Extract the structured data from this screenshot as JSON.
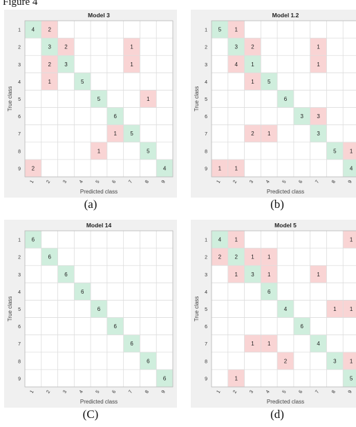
{
  "figure": {
    "title": "Figure 4"
  },
  "chart_data": [
    {
      "type": "heatmap",
      "title": "Model 3",
      "caption": "(a)",
      "xlabel": "Predicted class",
      "ylabel": "True class",
      "row_labels": [
        "1",
        "2",
        "3",
        "4",
        "5",
        "6",
        "7",
        "8",
        "9"
      ],
      "col_labels": [
        "1",
        "2",
        "3",
        "4",
        "5",
        "6",
        "7",
        "8",
        "9"
      ],
      "colors": {
        "diagonal": "#cfeedd",
        "off_diagonal": "#f9d4d4",
        "frame": "#f0f0f0",
        "grid": "#dddddd"
      },
      "cells": [
        {
          "row": 1,
          "col": 1,
          "value": 4
        },
        {
          "row": 1,
          "col": 2,
          "value": 2
        },
        {
          "row": 2,
          "col": 2,
          "value": 3
        },
        {
          "row": 2,
          "col": 3,
          "value": 2
        },
        {
          "row": 2,
          "col": 7,
          "value": 1
        },
        {
          "row": 3,
          "col": 2,
          "value": 2
        },
        {
          "row": 3,
          "col": 3,
          "value": 3
        },
        {
          "row": 3,
          "col": 7,
          "value": 1
        },
        {
          "row": 4,
          "col": 2,
          "value": 1
        },
        {
          "row": 4,
          "col": 4,
          "value": 5
        },
        {
          "row": 5,
          "col": 5,
          "value": 5
        },
        {
          "row": 5,
          "col": 8,
          "value": 1
        },
        {
          "row": 6,
          "col": 6,
          "value": 6
        },
        {
          "row": 7,
          "col": 6,
          "value": 1
        },
        {
          "row": 7,
          "col": 7,
          "value": 5
        },
        {
          "row": 8,
          "col": 5,
          "value": 1
        },
        {
          "row": 8,
          "col": 8,
          "value": 5
        },
        {
          "row": 9,
          "col": 1,
          "value": 2
        },
        {
          "row": 9,
          "col": 9,
          "value": 4
        }
      ]
    },
    {
      "type": "heatmap",
      "title": "Model 1.2",
      "caption": "(b)",
      "xlabel": "Predicted class",
      "ylabel": "True class",
      "row_labels": [
        "1",
        "2",
        "3",
        "4",
        "5",
        "6",
        "7",
        "8",
        "9"
      ],
      "col_labels": [
        "1",
        "2",
        "3",
        "4",
        "5",
        "6",
        "7",
        "8",
        "9"
      ],
      "colors": {
        "diagonal": "#cfeedd",
        "off_diagonal": "#f9d4d4",
        "frame": "#f0f0f0",
        "grid": "#dddddd"
      },
      "cells": [
        {
          "row": 1,
          "col": 1,
          "value": 5
        },
        {
          "row": 1,
          "col": 2,
          "value": 1
        },
        {
          "row": 2,
          "col": 2,
          "value": 3
        },
        {
          "row": 2,
          "col": 3,
          "value": 2
        },
        {
          "row": 2,
          "col": 7,
          "value": 1
        },
        {
          "row": 3,
          "col": 2,
          "value": 4
        },
        {
          "row": 3,
          "col": 3,
          "value": 1
        },
        {
          "row": 3,
          "col": 7,
          "value": 1
        },
        {
          "row": 4,
          "col": 3,
          "value": 1
        },
        {
          "row": 4,
          "col": 4,
          "value": 5
        },
        {
          "row": 5,
          "col": 5,
          "value": 6
        },
        {
          "row": 6,
          "col": 6,
          "value": 3
        },
        {
          "row": 6,
          "col": 7,
          "value": 3
        },
        {
          "row": 7,
          "col": 3,
          "value": 2
        },
        {
          "row": 7,
          "col": 4,
          "value": 1
        },
        {
          "row": 7,
          "col": 7,
          "value": 3
        },
        {
          "row": 8,
          "col": 8,
          "value": 5
        },
        {
          "row": 8,
          "col": 9,
          "value": 1
        },
        {
          "row": 9,
          "col": 1,
          "value": 1
        },
        {
          "row": 9,
          "col": 2,
          "value": 1
        },
        {
          "row": 9,
          "col": 9,
          "value": 4
        }
      ]
    },
    {
      "type": "heatmap",
      "title": "Model 14",
      "caption": "(C)",
      "xlabel": "Predicted class",
      "ylabel": "True class",
      "row_labels": [
        "1",
        "2",
        "3",
        "4",
        "5",
        "6",
        "7",
        "8",
        "9"
      ],
      "col_labels": [
        "1",
        "2",
        "3",
        "4",
        "5",
        "6",
        "7",
        "8",
        "9"
      ],
      "colors": {
        "diagonal": "#cfeedd",
        "off_diagonal": "#f9d4d4",
        "frame": "#f0f0f0",
        "grid": "#dddddd"
      },
      "cells": [
        {
          "row": 1,
          "col": 1,
          "value": 6
        },
        {
          "row": 2,
          "col": 2,
          "value": 6
        },
        {
          "row": 3,
          "col": 3,
          "value": 6
        },
        {
          "row": 4,
          "col": 4,
          "value": 6
        },
        {
          "row": 5,
          "col": 5,
          "value": 6
        },
        {
          "row": 6,
          "col": 6,
          "value": 6
        },
        {
          "row": 7,
          "col": 7,
          "value": 6
        },
        {
          "row": 8,
          "col": 8,
          "value": 6
        },
        {
          "row": 9,
          "col": 9,
          "value": 6
        }
      ]
    },
    {
      "type": "heatmap",
      "title": "Model 5",
      "caption": "(d)",
      "xlabel": "Predicted class",
      "ylabel": "True class",
      "row_labels": [
        "1",
        "2",
        "3",
        "4",
        "5",
        "6",
        "7",
        "8",
        "9"
      ],
      "col_labels": [
        "1",
        "2",
        "3",
        "4",
        "5",
        "6",
        "7",
        "8",
        "9"
      ],
      "colors": {
        "diagonal": "#cfeedd",
        "off_diagonal": "#f9d4d4",
        "frame": "#f0f0f0",
        "grid": "#dddddd"
      },
      "cells": [
        {
          "row": 1,
          "col": 1,
          "value": 4
        },
        {
          "row": 1,
          "col": 2,
          "value": 1
        },
        {
          "row": 1,
          "col": 9,
          "value": 1
        },
        {
          "row": 2,
          "col": 1,
          "value": 2
        },
        {
          "row": 2,
          "col": 2,
          "value": 2
        },
        {
          "row": 2,
          "col": 3,
          "value": 1
        },
        {
          "row": 2,
          "col": 4,
          "value": 1
        },
        {
          "row": 3,
          "col": 2,
          "value": 1
        },
        {
          "row": 3,
          "col": 3,
          "value": 3
        },
        {
          "row": 3,
          "col": 4,
          "value": 1
        },
        {
          "row": 3,
          "col": 7,
          "value": 1
        },
        {
          "row": 4,
          "col": 4,
          "value": 6
        },
        {
          "row": 5,
          "col": 5,
          "value": 4
        },
        {
          "row": 5,
          "col": 8,
          "value": 1
        },
        {
          "row": 5,
          "col": 9,
          "value": 1
        },
        {
          "row": 6,
          "col": 6,
          "value": 6
        },
        {
          "row": 7,
          "col": 3,
          "value": 1
        },
        {
          "row": 7,
          "col": 4,
          "value": 1
        },
        {
          "row": 7,
          "col": 7,
          "value": 4
        },
        {
          "row": 8,
          "col": 5,
          "value": 2
        },
        {
          "row": 8,
          "col": 8,
          "value": 3
        },
        {
          "row": 8,
          "col": 9,
          "value": 1
        },
        {
          "row": 9,
          "col": 2,
          "value": 1
        },
        {
          "row": 9,
          "col": 9,
          "value": 5
        }
      ]
    }
  ]
}
